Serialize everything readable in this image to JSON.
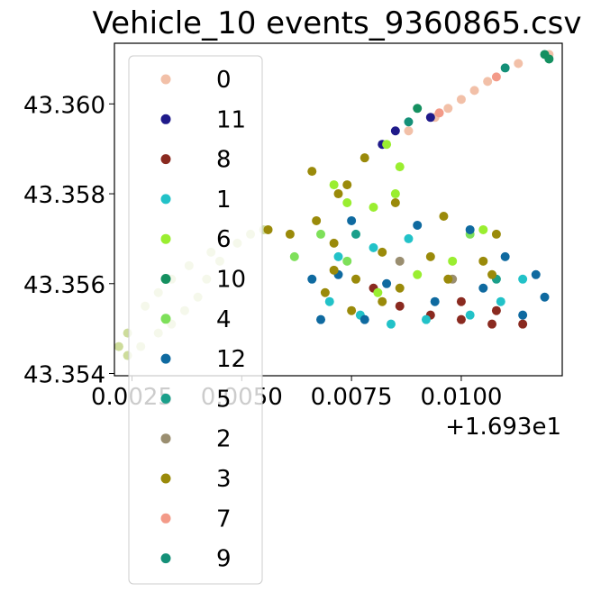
{
  "chart_data": {
    "type": "scatter",
    "title": "Vehicle_10 events_9360865.csv",
    "xlabel": "",
    "ylabel": "",
    "x_offset_label": "+1.693e1",
    "xlim": [
      16.9321,
      16.9423
    ],
    "ylim": [
      43.35395,
      43.36135
    ],
    "x_ticks": [
      16.9325,
      16.935,
      16.9375,
      16.94
    ],
    "x_tick_labels": [
      "0.0025",
      "0.0050",
      "0.0075",
      "0.0100"
    ],
    "y_ticks": [
      43.354,
      43.356,
      43.358,
      43.36
    ],
    "y_tick_labels": [
      "43.354",
      "43.356",
      "43.358",
      "43.360"
    ],
    "grid": false,
    "legend_placement": "upper-left, overlapping plot",
    "series": [
      {
        "name": "0",
        "color": "#f2c0a8",
        "points": [
          [
            16.9388,
            43.3594
          ],
          [
            16.9394,
            43.3597
          ],
          [
            16.94,
            43.3601
          ],
          [
            16.9406,
            43.3605
          ],
          [
            16.9413,
            43.3609
          ],
          [
            16.942,
            43.3611
          ],
          [
            16.9403,
            43.3603
          ],
          [
            16.9397,
            43.3599
          ]
        ]
      },
      {
        "name": "11",
        "color": "#1f1a8a",
        "points": [
          [
            16.9382,
            43.3591
          ],
          [
            16.9385,
            43.3594
          ],
          [
            16.9393,
            43.3597
          ]
        ]
      },
      {
        "name": "8",
        "color": "#8a2a20",
        "points": [
          [
            16.938,
            43.3559
          ],
          [
            16.9386,
            43.3555
          ],
          [
            16.9393,
            43.3553
          ],
          [
            16.94,
            43.3552
          ],
          [
            16.9407,
            43.3551
          ],
          [
            16.9414,
            43.3551
          ],
          [
            16.9408,
            43.3554
          ],
          [
            16.94,
            43.3556
          ]
        ]
      },
      {
        "name": "1",
        "color": "#22c2c8",
        "points": [
          [
            16.937,
            43.3556
          ],
          [
            16.9377,
            43.3553
          ],
          [
            16.9384,
            43.3551
          ],
          [
            16.9392,
            43.3552
          ],
          [
            16.9402,
            43.3553
          ],
          [
            16.9409,
            43.3556
          ],
          [
            16.9414,
            43.3561
          ],
          [
            16.9372,
            43.3566
          ],
          [
            16.938,
            43.3568
          ],
          [
            16.9388,
            43.357
          ]
        ]
      },
      {
        "name": "6",
        "color": "#9aee30",
        "points": [
          [
            16.9371,
            43.3582
          ],
          [
            16.9374,
            43.3578
          ],
          [
            16.938,
            43.3577
          ],
          [
            16.9385,
            43.358
          ],
          [
            16.9386,
            43.3586
          ],
          [
            16.9383,
            43.3591
          ],
          [
            16.9405,
            43.3572
          ],
          [
            16.9398,
            43.3565
          ],
          [
            16.939,
            43.3562
          ],
          [
            16.9381,
            43.3558
          ]
        ]
      },
      {
        "name": "10",
        "color": "#159060",
        "points": [
          [
            16.9419,
            43.3611
          ],
          [
            16.942,
            43.361
          ],
          [
            16.939,
            43.3599
          ]
        ]
      },
      {
        "name": "4",
        "color": "#7ee05a",
        "points": [
          [
            16.9362,
            43.3566
          ],
          [
            16.9368,
            43.3571
          ],
          [
            16.9374,
            43.3565
          ],
          [
            16.9402,
            43.3571
          ]
        ]
      },
      {
        "name": "12",
        "color": "#0f6aa0",
        "points": [
          [
            16.9375,
            43.3574
          ],
          [
            16.939,
            43.3573
          ],
          [
            16.9402,
            43.3572
          ],
          [
            16.941,
            43.3566
          ],
          [
            16.9417,
            43.3562
          ],
          [
            16.9419,
            43.3557
          ],
          [
            16.9414,
            43.3553
          ],
          [
            16.9405,
            43.3559
          ],
          [
            16.9394,
            43.3556
          ],
          [
            16.9383,
            43.356
          ],
          [
            16.9372,
            43.3562
          ],
          [
            16.9366,
            43.3561
          ],
          [
            16.9368,
            43.3552
          ],
          [
            16.9378,
            43.3552
          ]
        ]
      },
      {
        "name": "5",
        "color": "#1a9f8a",
        "points": [
          [
            16.9376,
            43.3571
          ],
          [
            16.9408,
            43.3561
          ]
        ]
      },
      {
        "name": "2",
        "color": "#9a8e70",
        "points": [
          [
            16.9386,
            43.3565
          ],
          [
            16.9398,
            43.3561
          ]
        ]
      },
      {
        "name": "3",
        "color": "#9a8a0a",
        "points": [
          [
            16.9366,
            43.3585
          ],
          [
            16.9374,
            43.3582
          ],
          [
            16.9385,
            43.3578
          ],
          [
            16.9396,
            43.3575
          ],
          [
            16.9408,
            43.3571
          ],
          [
            16.9378,
            43.3588
          ],
          [
            16.9372,
            43.358
          ],
          [
            16.9367,
            43.3574
          ],
          [
            16.9356,
            43.3572
          ],
          [
            16.9361,
            43.3571
          ],
          [
            16.9371,
            43.3569
          ],
          [
            16.9382,
            43.3567
          ],
          [
            16.9393,
            43.3566
          ],
          [
            16.9405,
            43.3565
          ],
          [
            16.9371,
            43.3563
          ],
          [
            16.9376,
            43.3561
          ],
          [
            16.9386,
            43.3559
          ],
          [
            16.9397,
            43.3561
          ],
          [
            16.9407,
            43.3562
          ],
          [
            16.9369,
            43.3558
          ],
          [
            16.9375,
            43.3554
          ],
          [
            16.9382,
            43.3556
          ]
        ]
      },
      {
        "name": "7",
        "color": "#f39a88",
        "points": [
          [
            16.9395,
            43.3598
          ],
          [
            16.9408,
            43.3606
          ]
        ]
      },
      {
        "name": "9",
        "color": "#149078",
        "points": [
          [
            16.9388,
            43.3596
          ],
          [
            16.941,
            43.3608
          ]
        ]
      }
    ],
    "background_trail_points": [
      [
        16.9343,
        43.3567
      ],
      [
        16.9338,
        43.3564
      ],
      [
        16.9334,
        43.3561
      ],
      [
        16.9331,
        43.3558
      ],
      [
        16.9328,
        43.3555
      ],
      [
        16.9324,
        43.3549
      ],
      [
        16.9322,
        43.3546
      ],
      [
        16.9324,
        43.3544
      ],
      [
        16.9327,
        43.3546
      ],
      [
        16.9331,
        43.3549
      ],
      [
        16.9334,
        43.3551
      ],
      [
        16.9337,
        43.3554
      ],
      [
        16.934,
        43.3557
      ],
      [
        16.9342,
        43.3561
      ],
      [
        16.9345,
        43.3565
      ],
      [
        16.9349,
        43.3569
      ],
      [
        16.9352,
        43.3571
      ],
      [
        16.9355,
        43.3572
      ]
    ]
  }
}
